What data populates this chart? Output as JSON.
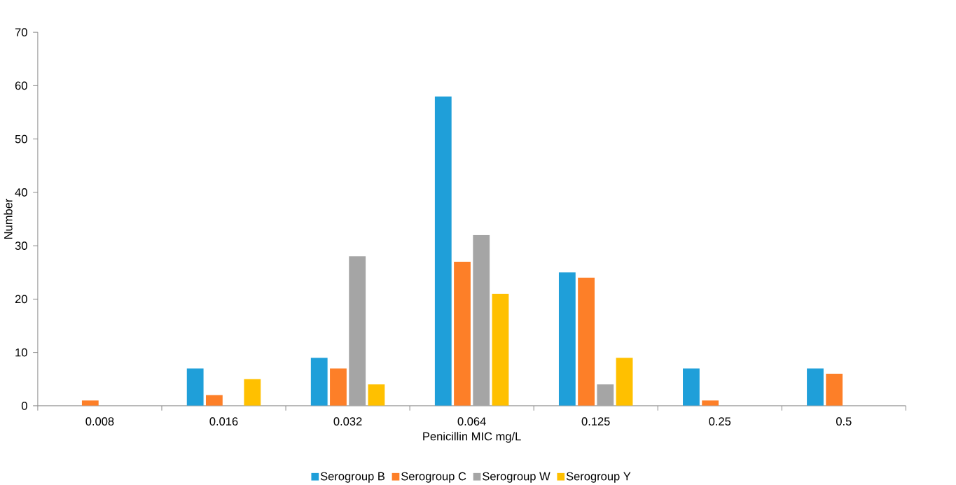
{
  "chart_data": {
    "type": "bar",
    "xlabel": "Penicillin MIC mg/L",
    "ylabel": "Number",
    "categories": [
      "0.008",
      "0.016",
      "0.032",
      "0.064",
      "0.125",
      "0.25",
      "0.5"
    ],
    "series": [
      {
        "name": "Serogroup B",
        "color": "#1f9fd9",
        "values": [
          0,
          7,
          9,
          58,
          25,
          7,
          7
        ]
      },
      {
        "name": "Serogroup C",
        "color": "#fd7f28",
        "values": [
          1,
          2,
          7,
          27,
          24,
          1,
          6
        ]
      },
      {
        "name": "Serogroup W",
        "color": "#a5a5a5",
        "values": [
          0,
          0,
          28,
          32,
          4,
          0,
          0
        ]
      },
      {
        "name": "Serogroup Y",
        "color": "#ffc000",
        "values": [
          0,
          5,
          4,
          21,
          9,
          0,
          0
        ]
      }
    ],
    "ylim": [
      0,
      70
    ],
    "yticks": [
      0,
      10,
      20,
      30,
      40,
      50,
      60,
      70
    ],
    "legend": "bottom"
  }
}
